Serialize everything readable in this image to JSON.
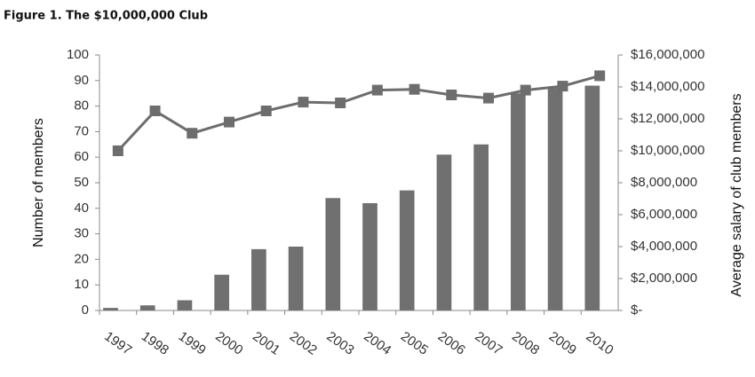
{
  "chart_data": {
    "type": "bar-line",
    "title": "Figure 1. The $10,000,000 Club",
    "ylabel": "Number of members",
    "y2label": "Average salary of club members",
    "categories": [
      "1997",
      "1998",
      "1999",
      "2000",
      "2001",
      "2002",
      "2003",
      "2004",
      "2005",
      "2006",
      "2007",
      "2008",
      "2009",
      "2010"
    ],
    "series": [
      {
        "type": "bar",
        "color": "#707070",
        "values": [
          1,
          2,
          4,
          14,
          24,
          25,
          44,
          42,
          47,
          61,
          65,
          85,
          87,
          88
        ]
      },
      {
        "type": "line",
        "color": "#6d6d6d",
        "axis": "y2",
        "values": [
          10000000,
          12500000,
          11100000,
          11800000,
          12500000,
          13050000,
          13000000,
          13800000,
          13850000,
          13500000,
          13300000,
          13800000,
          14050000,
          14700000
        ]
      }
    ],
    "ylim": [
      0,
      100
    ],
    "yticks": [
      0,
      10,
      20,
      30,
      40,
      50,
      60,
      70,
      80,
      90,
      100
    ],
    "y2lim": [
      0,
      16000000
    ],
    "y2ticks": [
      {
        "value": 0,
        "label": "$-"
      },
      {
        "value": 2000000,
        "label": "$2,000,000"
      },
      {
        "value": 4000000,
        "label": "$4,000,000"
      },
      {
        "value": 6000000,
        "label": "$6,000,000"
      },
      {
        "value": 8000000,
        "label": "$8,000,000"
      },
      {
        "value": 10000000,
        "label": "$10,000,000"
      },
      {
        "value": 12000000,
        "label": "$12,000,000"
      },
      {
        "value": 14000000,
        "label": "$14,000,000"
      },
      {
        "value": 16000000,
        "label": "$16,000,000"
      }
    ],
    "grid": false
  }
}
